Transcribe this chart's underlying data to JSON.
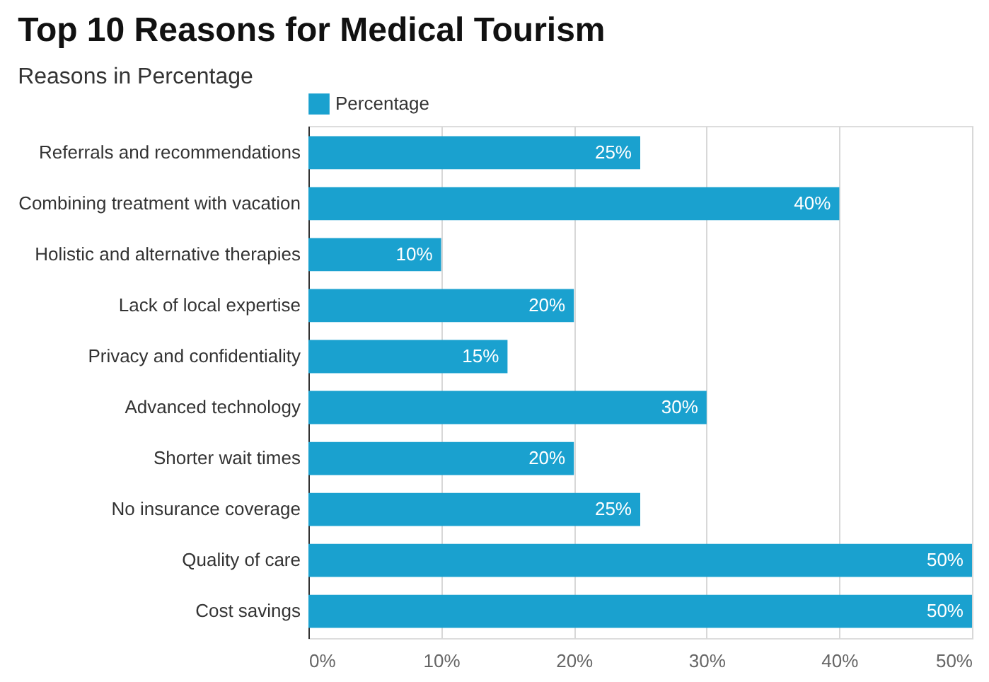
{
  "chart_data": {
    "type": "bar",
    "orientation": "horizontal",
    "title": "Top 10 Reasons for Medical Tourism",
    "subtitle": "Reasons in Percentage",
    "categories": [
      "Referrals and recommendations",
      "Combining treatment with vacation",
      "Holistic and alternative therapies",
      "Lack of local expertise",
      "Privacy and confidentiality",
      "Advanced technology",
      "Shorter wait times",
      "No insurance coverage",
      "Quality of care",
      "Cost savings"
    ],
    "series": [
      {
        "name": "Percentage",
        "color": "#1aa1cf",
        "values": [
          25,
          40,
          10,
          20,
          15,
          30,
          20,
          25,
          50,
          50
        ],
        "value_labels": [
          "25%",
          "40%",
          "10%",
          "20%",
          "15%",
          "30%",
          "20%",
          "25%",
          "50%",
          "50%"
        ]
      }
    ],
    "xlim": [
      0,
      50
    ],
    "xticks": [
      {
        "value": 0,
        "label": "0%"
      },
      {
        "value": 10,
        "label": "10%"
      },
      {
        "value": 20,
        "label": "20%"
      },
      {
        "value": 30,
        "label": "30%"
      },
      {
        "value": 40,
        "label": "40%"
      },
      {
        "value": 50,
        "label": "50%"
      }
    ],
    "grid": "x",
    "legend": "top left"
  }
}
